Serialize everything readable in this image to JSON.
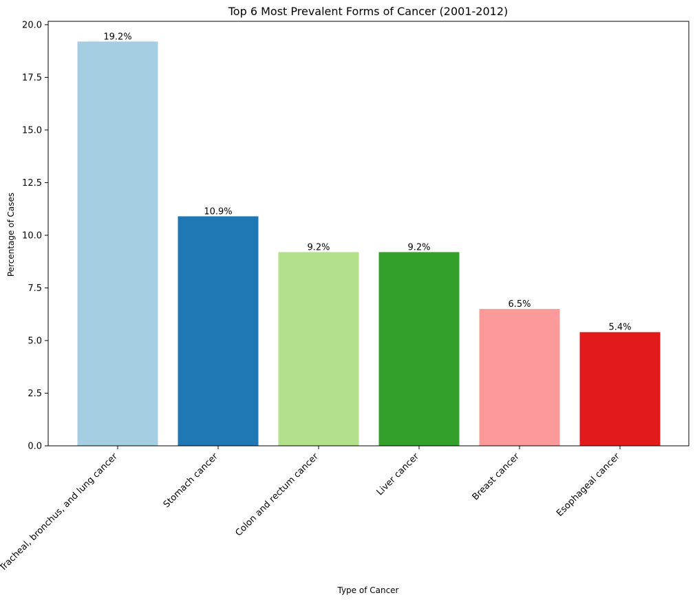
{
  "chart_data": {
    "type": "bar",
    "title": "Top 6 Most Prevalent Forms of Cancer (2001-2012)",
    "xlabel": "Type of Cancer",
    "ylabel": "Percentage of Cases",
    "categories": [
      "Tracheal, bronchus, and lung cancer",
      "Stomach cancer",
      "Colon and rectum cancer",
      "Liver cancer",
      "Breast cancer",
      "Esophageal cancer"
    ],
    "values": [
      19.2,
      10.9,
      9.2,
      9.2,
      6.5,
      5.4
    ],
    "data_labels": [
      "19.2%",
      "10.9%",
      "9.2%",
      "9.2%",
      "6.5%",
      "5.4%"
    ],
    "colors": [
      "#a6cee3",
      "#1f78b4",
      "#b2df8a",
      "#33a02c",
      "#fb9a99",
      "#e31a1c"
    ],
    "ylim": [
      0,
      20.16
    ],
    "yticks": [
      0.0,
      2.5,
      5.0,
      7.5,
      10.0,
      12.5,
      15.0,
      17.5,
      20.0
    ],
    "ytick_labels": [
      "0.0",
      "2.5",
      "5.0",
      "7.5",
      "10.0",
      "12.5",
      "15.0",
      "17.5",
      "20.0"
    ],
    "grid": false,
    "legend": "none"
  }
}
